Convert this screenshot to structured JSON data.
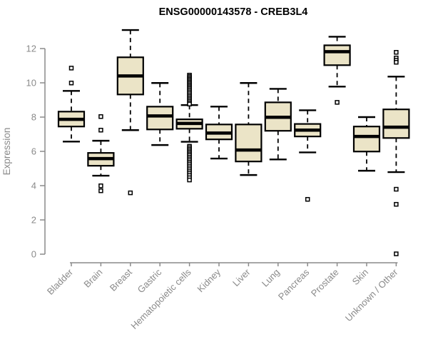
{
  "title": "ENSG00000143578 - CREB3L4",
  "chart_data": {
    "type": "boxplot",
    "title": "ENSG00000143578 - CREB3L4",
    "xlabel": "",
    "ylabel": "Expression",
    "ylim": [
      0,
      13.2
    ],
    "yticks": [
      0,
      2,
      4,
      6,
      8,
      10,
      12
    ],
    "grid": false,
    "legend": false,
    "categories": [
      "Bladder",
      "Brain",
      "Breast",
      "Gastric",
      "Hematopoietic cells",
      "Kidney",
      "Liver",
      "Lung",
      "Pancreas",
      "Prostate",
      "Skin",
      "Unknown / Other"
    ],
    "series": [
      {
        "name": "Bladder",
        "whisker_low": 6.57,
        "q1": 7.45,
        "median": 7.87,
        "q3": 8.32,
        "whisker_high": 9.53,
        "outliers": [
          10.86,
          9.99
        ]
      },
      {
        "name": "Brain",
        "whisker_low": 4.58,
        "q1": 5.16,
        "median": 5.58,
        "q3": 5.91,
        "whisker_high": 6.62,
        "outliers": [
          8.03,
          7.24,
          3.99,
          3.7
        ]
      },
      {
        "name": "Breast",
        "whisker_low": 7.24,
        "q1": 9.32,
        "median": 10.4,
        "q3": 11.49,
        "whisker_high": 13.08,
        "outliers": [
          3.58
        ]
      },
      {
        "name": "Gastric",
        "whisker_low": 6.37,
        "q1": 7.28,
        "median": 8.07,
        "q3": 8.61,
        "whisker_high": 9.99,
        "outliers": []
      },
      {
        "name": "Hematopoietic cells",
        "whisker_low": 6.56,
        "q1": 7.32,
        "median": 7.63,
        "q3": 7.87,
        "whisker_high": 8.7,
        "outliers": [
          10.45,
          10.37,
          10.29,
          10.21,
          10.13,
          10.05,
          9.97,
          9.89,
          9.81,
          9.73,
          9.65,
          9.56,
          9.47,
          9.38,
          9.29,
          9.2,
          9.11,
          9.02,
          8.93,
          8.84,
          8.76,
          6.3,
          6.21,
          6.12,
          6.03,
          5.94,
          5.85,
          5.76,
          5.66,
          5.56,
          5.46,
          5.36,
          5.26,
          5.15,
          5.04,
          4.93,
          4.82,
          4.71,
          4.59,
          4.46,
          4.33
        ]
      },
      {
        "name": "Kidney",
        "whisker_low": 5.58,
        "q1": 6.7,
        "median": 7.07,
        "q3": 7.57,
        "whisker_high": 8.61,
        "outliers": []
      },
      {
        "name": "Liver",
        "whisker_low": 4.62,
        "q1": 5.41,
        "median": 6.08,
        "q3": 7.57,
        "whisker_high": 9.99,
        "outliers": []
      },
      {
        "name": "Lung",
        "whisker_low": 5.53,
        "q1": 7.2,
        "median": 7.99,
        "q3": 8.86,
        "whisker_high": 9.65,
        "outliers": []
      },
      {
        "name": "Pancreas",
        "whisker_low": 5.94,
        "q1": 6.87,
        "median": 7.24,
        "q3": 7.6,
        "whisker_high": 8.4,
        "outliers": [
          3.2
        ]
      },
      {
        "name": "Prostate",
        "whisker_low": 9.78,
        "q1": 11.03,
        "median": 11.82,
        "q3": 12.19,
        "whisker_high": 12.69,
        "outliers": [
          8.86
        ]
      },
      {
        "name": "Skin",
        "whisker_low": 4.87,
        "q1": 5.99,
        "median": 6.87,
        "q3": 7.45,
        "whisker_high": 8.0,
        "outliers": []
      },
      {
        "name": "Unknown / Other",
        "whisker_low": 4.79,
        "q1": 6.78,
        "median": 7.41,
        "q3": 8.45,
        "whisker_high": 10.36,
        "outliers": [
          11.78,
          11.45,
          11.32,
          11.2,
          3.79,
          2.91,
          0.02
        ]
      }
    ],
    "colors": {
      "box_fill": "#ebe4c7",
      "box_stroke": "#000000",
      "median": "#000000",
      "whisker": "#000000",
      "outlier_fill": "#ffffff",
      "outlier_stroke": "#000000",
      "axis": "#8a8a8a",
      "tick_label": "#8a8a8a",
      "title": "#000000",
      "background": "#ffffff"
    }
  }
}
